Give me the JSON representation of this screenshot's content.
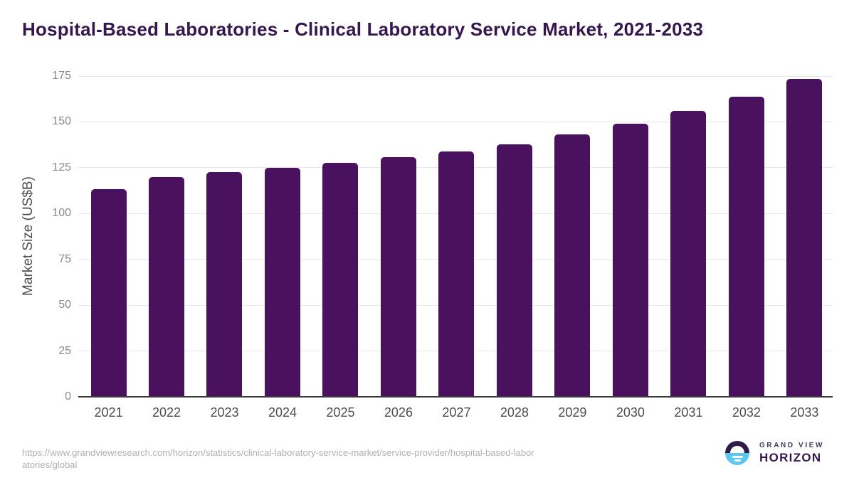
{
  "title": "Hospital-Based Laboratories - Clinical Laboratory Service Market, 2021-2033",
  "chart_data": {
    "type": "bar",
    "categories": [
      "2021",
      "2022",
      "2023",
      "2024",
      "2025",
      "2026",
      "2027",
      "2028",
      "2029",
      "2030",
      "2031",
      "2032",
      "2033"
    ],
    "values": [
      113.3,
      119.9,
      122.6,
      125.0,
      127.5,
      130.6,
      133.8,
      137.9,
      143.2,
      149.0,
      155.8,
      163.9,
      173.5
    ],
    "title": "Hospital-Based Laboratories - Clinical Laboratory Service Market, 2021-2033",
    "xlabel": "",
    "ylabel": "Market Size (US$B)",
    "ylim": [
      0,
      175
    ],
    "yticks": [
      0,
      25,
      50,
      75,
      100,
      125,
      150,
      175
    ],
    "grid": true,
    "legend": "none",
    "bar_color": "#4A115E"
  },
  "footer": {
    "source_url_line1": "https://www.grandviewresearch.com/horizon/statistics/clinical-laboratory-service-market/service-provider/hospital-based-labor",
    "source_url_line2": "atories/global"
  },
  "logo": {
    "brand_top": "GRAND VIEW",
    "brand_bottom": "HORIZON"
  },
  "colors": {
    "title": "#35174E",
    "bar": "#4A115E",
    "gridline": "#e8e8e8",
    "axis_line": "#3a3a3a",
    "y_tick": "#8a8a8a",
    "x_tick": "#4d4d4d",
    "footer_text": "#b0b0b0",
    "logo_dark": "#2D1B49",
    "logo_blue": "#5CC7F0"
  }
}
